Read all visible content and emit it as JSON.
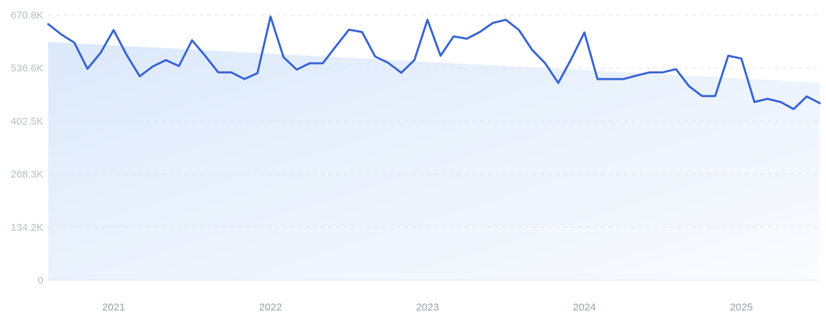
{
  "chart_data": {
    "type": "line",
    "x_range": [
      "2020-08",
      "2025-07"
    ],
    "ylim": [
      0,
      670800
    ],
    "y_ticks": [
      {
        "value": 0,
        "label": "0"
      },
      {
        "value": 134200,
        "label": "134.2K"
      },
      {
        "value": 268300,
        "label": "268.3K"
      },
      {
        "value": 402500,
        "label": "402.5K"
      },
      {
        "value": 536600,
        "label": "536.6K"
      },
      {
        "value": 670800,
        "label": "670.8K"
      }
    ],
    "x_ticks": [
      {
        "value": "2021-01",
        "label": "2021"
      },
      {
        "value": "2022-01",
        "label": "2022"
      },
      {
        "value": "2023-01",
        "label": "2023"
      },
      {
        "value": "2024-01",
        "label": "2024"
      },
      {
        "value": "2025-01",
        "label": "2025"
      }
    ],
    "grid": true,
    "line_color": "#3663d4",
    "trend_fill_color": "#dce9fb",
    "trend": {
      "x": [
        "2020-08",
        "2025-07"
      ],
      "y": [
        603000,
        500000
      ]
    },
    "series": [
      {
        "x": [
          "2020-08",
          "2020-09",
          "2020-10",
          "2020-11",
          "2020-12",
          "2021-01",
          "2021-02",
          "2021-03",
          "2021-04",
          "2021-05",
          "2021-06",
          "2021-07",
          "2021-08",
          "2021-09",
          "2021-10",
          "2021-11",
          "2021-12",
          "2022-01",
          "2022-02",
          "2022-03",
          "2022-04",
          "2022-05",
          "2022-06",
          "2022-07",
          "2022-08",
          "2022-09",
          "2022-10",
          "2022-11",
          "2022-12",
          "2023-01",
          "2023-02",
          "2023-03",
          "2023-04",
          "2023-05",
          "2023-06",
          "2023-07",
          "2023-08",
          "2023-09",
          "2023-10",
          "2023-11",
          "2023-12",
          "2024-01",
          "2024-02",
          "2024-03",
          "2024-04",
          "2024-05",
          "2024-06",
          "2024-07",
          "2024-08",
          "2024-09",
          "2024-10",
          "2024-11",
          "2024-12",
          "2025-01",
          "2025-02",
          "2025-03",
          "2025-04",
          "2025-05",
          "2025-06",
          "2025-07"
        ],
        "y": [
          648000,
          622000,
          601000,
          535000,
          575000,
          633000,
          570000,
          516000,
          541000,
          557000,
          542000,
          607000,
          568000,
          526000,
          526000,
          509000,
          524000,
          667000,
          564000,
          533000,
          549000,
          549000,
          592000,
          634000,
          628000,
          566000,
          550000,
          525000,
          557000,
          659000,
          568000,
          617000,
          611000,
          628000,
          651000,
          659000,
          633000,
          583000,
          549000,
          499000,
          560000,
          627000,
          509000,
          509000,
          509000,
          518000,
          526000,
          526000,
          534000,
          491000,
          466000,
          466000,
          568000,
          561000,
          451000,
          459000,
          451000,
          433000,
          465000,
          448000
        ]
      }
    ]
  }
}
